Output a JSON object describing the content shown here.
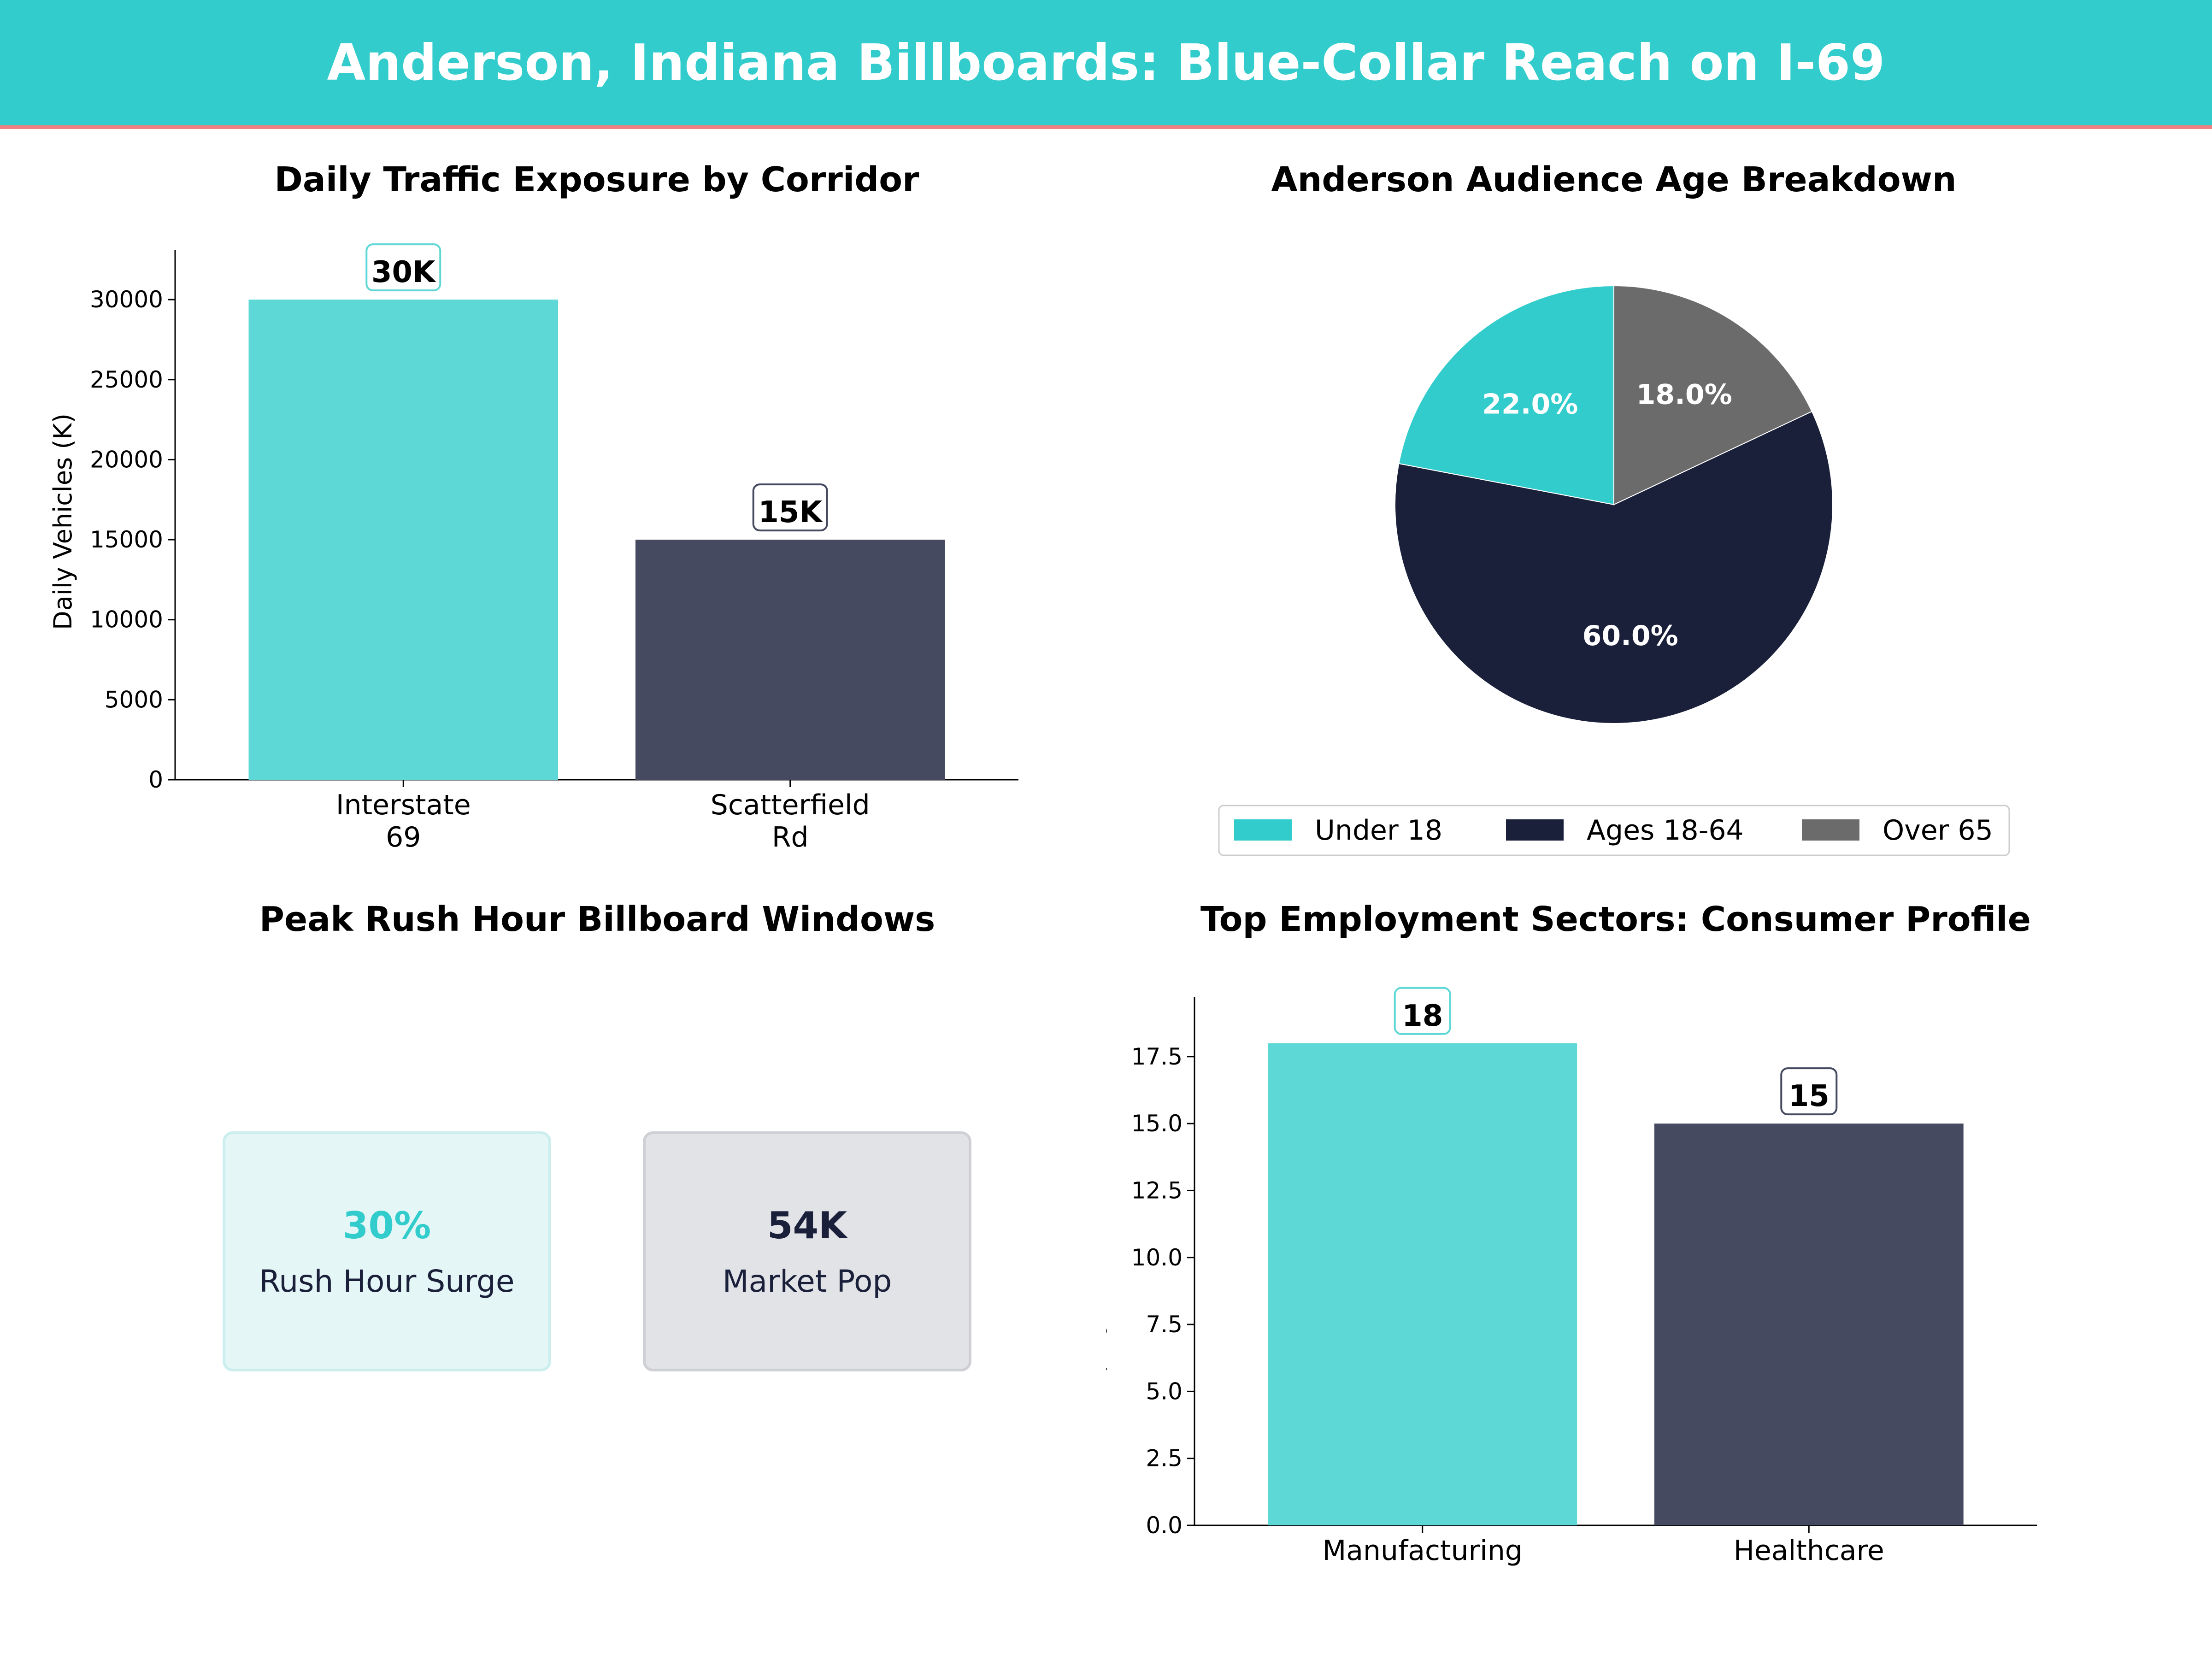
{
  "header": {
    "title": "Anderson, Indiana Billboards: Blue-Collar Reach on I-69"
  },
  "chart_data": [
    {
      "type": "bar",
      "title": "Daily Traffic Exposure by Corridor",
      "ylabel": "Daily Vehicles (K)",
      "xlabel": "",
      "categories": [
        "Interstate\n69",
        "Scatterfield\nRd"
      ],
      "values": [
        30000,
        15000
      ],
      "value_labels": [
        "30K",
        "15K"
      ],
      "colors": [
        "#5ed8d6",
        "#454a60"
      ],
      "label_box_colors": [
        "#5ed8d6",
        "#454a60"
      ],
      "ylim": [
        0,
        32250
      ],
      "yticks": [
        0,
        5000,
        10000,
        15000,
        20000,
        25000,
        30000
      ],
      "grid": false
    },
    {
      "type": "pie",
      "title": "Anderson Audience Age Breakdown",
      "categories": [
        "Under 18",
        "Ages 18-64",
        "Over 65"
      ],
      "values": [
        22.0,
        60.0,
        18.0
      ],
      "value_labels": [
        "22.0%",
        "60.0%",
        "18.0%"
      ],
      "colors": [
        "#33cccc",
        "#1a1f3a",
        "#6b6b6b"
      ],
      "legend": "bottom"
    },
    {
      "type": "bar",
      "title": "Top Employment Sectors: Consumer Profile",
      "ylabel": "Employment Share (%)",
      "xlabel": "",
      "categories": [
        "Manufacturing",
        "Healthcare"
      ],
      "values": [
        18,
        15
      ],
      "value_labels": [
        "18",
        "15"
      ],
      "colors": [
        "#5ed8d6",
        "#454a60"
      ],
      "label_box_colors": [
        "#5ed8d6",
        "#454a60"
      ],
      "ylim": [
        0,
        19.2
      ],
      "yticks": [
        "0.0",
        "2.5",
        "5.0",
        "7.5",
        "10.0",
        "12.5",
        "15.0",
        "17.5"
      ],
      "grid": false
    }
  ],
  "kpi_panel": {
    "title": "Peak Rush Hour Billboard Windows",
    "cards": [
      {
        "value": "30%",
        "label": "Rush Hour Surge",
        "value_color": "#33cccc",
        "bg": "#e4f6f6",
        "border": "#cdeeee"
      },
      {
        "value": "54K",
        "label": "Market Pop",
        "value_color": "#1a1f3a",
        "bg": "#e2e3e7",
        "border": "#cfd0d6"
      }
    ]
  }
}
